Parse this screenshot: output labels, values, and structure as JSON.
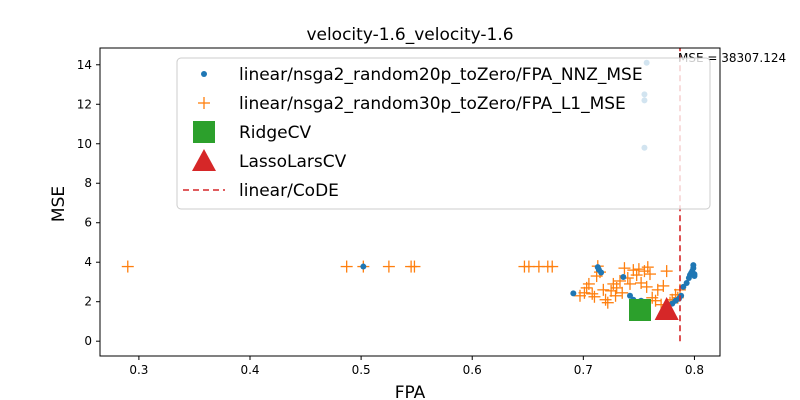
{
  "chart_data": {
    "type": "scatter",
    "title": "velocity-1.6_velocity-1.6",
    "xlabel": "FPA",
    "ylabel": "MSE",
    "xlim": [
      0.265,
      0.823
    ],
    "ylim": [
      -0.75,
      14.85
    ],
    "xticks": [
      0.3,
      0.4,
      0.5,
      0.6,
      0.7,
      0.8
    ],
    "yticks": [
      0,
      2,
      4,
      6,
      8,
      10,
      12,
      14
    ],
    "grid": false,
    "legend_position": "top-right",
    "annotation": "MSE = 38307.124",
    "series": [
      {
        "name": "linear/nsga2_random20p_toZero/FPA_NNZ_MSE",
        "marker": "dot",
        "color": "#1f77b4",
        "points": [
          [
            0.502,
            3.78
          ],
          [
            0.691,
            2.42
          ],
          [
            0.713,
            3.75
          ],
          [
            0.714,
            3.62
          ],
          [
            0.716,
            3.48
          ],
          [
            0.736,
            3.25
          ],
          [
            0.742,
            2.3
          ],
          [
            0.745,
            2.1
          ],
          [
            0.748,
            1.95
          ],
          [
            0.752,
            2.05
          ],
          [
            0.755,
            9.8
          ],
          [
            0.755,
            12.2
          ],
          [
            0.755,
            12.5
          ],
          [
            0.757,
            14.1
          ],
          [
            0.78,
            1.9
          ],
          [
            0.783,
            2.05
          ],
          [
            0.786,
            2.15
          ],
          [
            0.788,
            2.3
          ],
          [
            0.79,
            2.75
          ],
          [
            0.793,
            2.95
          ],
          [
            0.795,
            3.2
          ],
          [
            0.796,
            3.35
          ],
          [
            0.797,
            3.45
          ],
          [
            0.798,
            3.55
          ],
          [
            0.799,
            3.7
          ],
          [
            0.799,
            3.85
          ],
          [
            0.8,
            3.3
          ],
          [
            0.8,
            3.4
          ]
        ]
      },
      {
        "name": "linear/nsga2_random30p_toZero/FPA_L1_MSE",
        "marker": "plus",
        "color": "#ff7f0e",
        "points": [
          [
            0.29,
            3.78
          ],
          [
            0.487,
            3.78
          ],
          [
            0.502,
            3.78
          ],
          [
            0.525,
            3.78
          ],
          [
            0.545,
            3.78
          ],
          [
            0.548,
            3.78
          ],
          [
            0.647,
            3.78
          ],
          [
            0.651,
            3.78
          ],
          [
            0.66,
            3.78
          ],
          [
            0.668,
            3.78
          ],
          [
            0.672,
            3.78
          ],
          [
            0.697,
            2.3
          ],
          [
            0.701,
            2.45
          ],
          [
            0.703,
            2.7
          ],
          [
            0.705,
            2.9
          ],
          [
            0.708,
            2.4
          ],
          [
            0.71,
            2.25
          ],
          [
            0.712,
            3.3
          ],
          [
            0.713,
            3.8
          ],
          [
            0.715,
            3.5
          ],
          [
            0.718,
            2.6
          ],
          [
            0.72,
            2.1
          ],
          [
            0.722,
            1.95
          ],
          [
            0.725,
            2.55
          ],
          [
            0.727,
            2.9
          ],
          [
            0.729,
            2.3
          ],
          [
            0.73,
            2.7
          ],
          [
            0.733,
            3.05
          ],
          [
            0.735,
            2.45
          ],
          [
            0.737,
            3.7
          ],
          [
            0.74,
            3.2
          ],
          [
            0.742,
            2.9
          ],
          [
            0.745,
            3.6
          ],
          [
            0.748,
            3.35
          ],
          [
            0.75,
            3.65
          ],
          [
            0.752,
            2.95
          ],
          [
            0.755,
            3.55
          ],
          [
            0.757,
            2.75
          ],
          [
            0.758,
            3.75
          ],
          [
            0.76,
            3.4
          ],
          [
            0.762,
            2.2
          ],
          [
            0.765,
            2.05
          ],
          [
            0.767,
            2.6
          ],
          [
            0.77,
            1.85
          ],
          [
            0.772,
            2.8
          ],
          [
            0.775,
            3.55
          ],
          [
            0.778,
            1.95
          ],
          [
            0.78,
            2.1
          ],
          [
            0.783,
            2.35
          ],
          [
            0.785,
            2.2
          ],
          [
            0.787,
            2.6
          ]
        ]
      },
      {
        "name": "RidgeCV",
        "marker": "square",
        "color": "#2ca02c",
        "points": [
          [
            0.751,
            1.58
          ]
        ]
      },
      {
        "name": "LassoLarsCV",
        "marker": "triangle",
        "color": "#d62728",
        "points": [
          [
            0.775,
            1.58
          ]
        ]
      },
      {
        "name": "linear/CoDE",
        "marker": "vline-dashed",
        "color": "#d62728",
        "x": 0.787,
        "y_range": [
          0,
          14.85
        ]
      }
    ]
  }
}
